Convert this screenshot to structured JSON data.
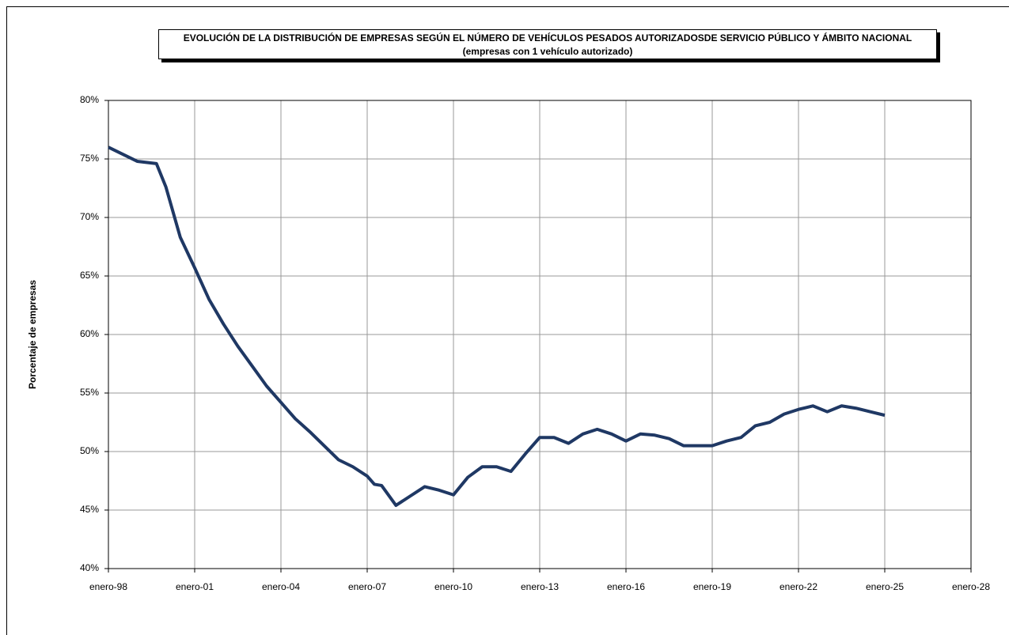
{
  "chart_data": {
    "type": "line",
    "title": "EVOLUCIÓN DE LA DISTRIBUCIÓN DE EMPRESAS SEGÚN EL NÚMERO DE VEHÍCULOS PESADOS AUTORIZADOSDE SERVICIO PÚBLICO Y ÁMBITO NACIONAL (empresas con 1 vehículo autorizado)",
    "y_label": "Porcentaje de empresas",
    "x": [
      1998,
      1999,
      1999.67,
      2000,
      2000.5,
      2001,
      2001.5,
      2002,
      2002.5,
      2003,
      2003.5,
      2004,
      2004.5,
      2005,
      2005.5,
      2006,
      2006.5,
      2007,
      2007.25,
      2007.5,
      2008,
      2008.5,
      2009,
      2009.5,
      2010,
      2010.5,
      2011,
      2011.5,
      2012,
      2012.5,
      2013,
      2013.5,
      2014,
      2014.5,
      2015,
      2015.5,
      2016,
      2016.5,
      2017,
      2017.5,
      2018,
      2018.5,
      2019,
      2019.5,
      2020,
      2020.5,
      2021,
      2021.5,
      2022,
      2022.5,
      2023,
      2023.5,
      2024,
      2024.5,
      2025
    ],
    "series": [
      {
        "color": "#1f3864",
        "values": [
          76.0,
          74.8,
          74.6,
          72.6,
          68.3,
          65.7,
          63.0,
          60.9,
          59.0,
          57.3,
          55.6,
          54.2,
          52.8,
          51.7,
          50.5,
          49.3,
          48.7,
          47.9,
          47.2,
          47.1,
          45.4,
          46.2,
          47.0,
          46.7,
          46.3,
          47.8,
          48.7,
          48.7,
          48.3,
          49.8,
          51.2,
          51.2,
          50.7,
          51.5,
          51.9,
          51.5,
          50.9,
          51.5,
          51.4,
          51.1,
          50.5,
          50.5,
          50.5,
          50.9,
          51.2,
          52.2,
          52.5,
          53.2,
          53.6,
          53.9,
          53.4,
          53.9,
          53.7,
          53.4,
          53.1
        ]
      }
    ],
    "xlim": [
      1998,
      2028
    ],
    "xticks": [
      {
        "value": 1998,
        "label": "enero-98"
      },
      {
        "value": 2001,
        "label": "enero-01"
      },
      {
        "value": 2004,
        "label": "enero-04"
      },
      {
        "value": 2007,
        "label": "enero-07"
      },
      {
        "value": 2010,
        "label": "enero-10"
      },
      {
        "value": 2013,
        "label": "enero-13"
      },
      {
        "value": 2016,
        "label": "enero-16"
      },
      {
        "value": 2019,
        "label": "enero-19"
      },
      {
        "value": 2022,
        "label": "enero-22"
      },
      {
        "value": 2025,
        "label": "enero-25"
      },
      {
        "value": 2028,
        "label": "enero-28"
      }
    ],
    "ylim": [
      40,
      80
    ],
    "yticks": [
      {
        "value": 40,
        "label": "40%"
      },
      {
        "value": 45,
        "label": "45%"
      },
      {
        "value": 50,
        "label": "50%"
      },
      {
        "value": 55,
        "label": "55%"
      },
      {
        "value": 60,
        "label": "60%"
      },
      {
        "value": 65,
        "label": "65%"
      },
      {
        "value": 70,
        "label": "70%"
      },
      {
        "value": 75,
        "label": "75%"
      },
      {
        "value": 80,
        "label": "80%"
      }
    ],
    "grid": true
  }
}
